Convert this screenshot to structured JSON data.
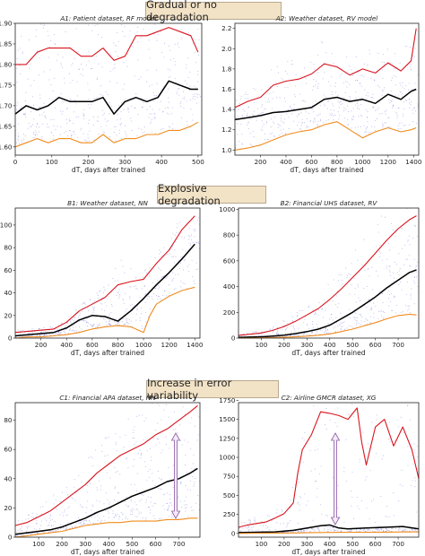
{
  "sections": [
    {
      "label": "Gradual or no degradation"
    },
    {
      "label": "Explosive degradation"
    },
    {
      "label": "Increase in error variability"
    }
  ],
  "colors": {
    "high": "#d9141e",
    "median": "#000000",
    "low": "#f08c1e",
    "scatter": "#4a4ad8"
  },
  "chart_data": [
    {
      "id": "A1",
      "type": "line",
      "title": "A1: Patient dataset, RF model",
      "xlabel": "dT, days after trained",
      "xlim": [
        0,
        510
      ],
      "ylim": [
        1.58,
        1.9
      ],
      "xticks": [
        0,
        100,
        200,
        300,
        400,
        500
      ],
      "yticks": [
        1.6,
        1.65,
        1.7,
        1.75,
        1.8,
        1.85,
        1.9
      ],
      "ytick_labels": [
        "1.60",
        "1.65",
        "1.70",
        "1.75",
        "1.80",
        "1.85",
        "1.90"
      ],
      "series": [
        {
          "x": [
            0,
            30,
            60,
            90,
            120,
            150,
            180,
            210,
            240,
            270,
            300,
            330,
            360,
            390,
            420,
            450,
            480,
            500
          ],
          "y": [
            1.8,
            1.8,
            1.83,
            1.84,
            1.84,
            1.84,
            1.82,
            1.82,
            1.84,
            1.81,
            1.82,
            1.87,
            1.87,
            1.88,
            1.89,
            1.88,
            1.87,
            1.83
          ]
        },
        {
          "x": [
            0,
            30,
            60,
            90,
            120,
            150,
            180,
            210,
            240,
            270,
            300,
            330,
            360,
            390,
            420,
            450,
            480,
            500
          ],
          "y": [
            1.68,
            1.7,
            1.69,
            1.7,
            1.72,
            1.71,
            1.71,
            1.71,
            1.72,
            1.68,
            1.71,
            1.72,
            1.71,
            1.72,
            1.76,
            1.75,
            1.74,
            1.74
          ]
        },
        {
          "x": [
            0,
            30,
            60,
            90,
            120,
            150,
            180,
            210,
            240,
            270,
            300,
            330,
            360,
            390,
            420,
            450,
            480,
            500
          ],
          "y": [
            1.6,
            1.61,
            1.62,
            1.61,
            1.62,
            1.62,
            1.61,
            1.61,
            1.63,
            1.61,
            1.62,
            1.62,
            1.63,
            1.63,
            1.64,
            1.64,
            1.65,
            1.66
          ]
        }
      ]
    },
    {
      "id": "A2",
      "type": "line",
      "title": "A2: Weather dataset, RV model",
      "xlabel": "dT, days after trained",
      "xlim": [
        0,
        1440
      ],
      "ylim": [
        0.95,
        2.25
      ],
      "xticks": [
        200,
        400,
        600,
        800,
        1000,
        1200,
        1400
      ],
      "yticks": [
        1.0,
        1.2,
        1.4,
        1.6,
        1.8,
        2.0,
        2.2
      ],
      "ytick_labels": [
        "1.0",
        "1.2",
        "1.4",
        "1.6",
        "1.8",
        "2.0",
        "2.2"
      ],
      "series": [
        {
          "x": [
            0,
            100,
            200,
            300,
            400,
            500,
            600,
            700,
            800,
            900,
            1000,
            1100,
            1200,
            1300,
            1380,
            1420
          ],
          "y": [
            1.42,
            1.48,
            1.52,
            1.64,
            1.68,
            1.7,
            1.75,
            1.85,
            1.82,
            1.74,
            1.8,
            1.76,
            1.86,
            1.78,
            1.88,
            2.2
          ]
        },
        {
          "x": [
            0,
            100,
            200,
            300,
            400,
            500,
            600,
            700,
            800,
            900,
            1000,
            1100,
            1200,
            1300,
            1380,
            1420
          ],
          "y": [
            1.3,
            1.32,
            1.34,
            1.37,
            1.38,
            1.4,
            1.42,
            1.5,
            1.52,
            1.48,
            1.5,
            1.46,
            1.55,
            1.5,
            1.58,
            1.6
          ]
        },
        {
          "x": [
            0,
            100,
            200,
            300,
            400,
            500,
            600,
            700,
            800,
            900,
            1000,
            1100,
            1200,
            1300,
            1380,
            1420
          ],
          "y": [
            1.0,
            1.02,
            1.05,
            1.1,
            1.15,
            1.18,
            1.2,
            1.25,
            1.28,
            1.2,
            1.12,
            1.18,
            1.22,
            1.18,
            1.2,
            1.22
          ]
        }
      ]
    },
    {
      "id": "B1",
      "type": "line",
      "title": "B1: Weather dataset, NN",
      "xlabel": "dT, days after trained",
      "xlim": [
        0,
        1440
      ],
      "ylim": [
        0,
        115
      ],
      "xticks": [
        200,
        400,
        600,
        800,
        1000,
        1200,
        1400
      ],
      "yticks": [
        0,
        20,
        40,
        60,
        80,
        100
      ],
      "ytick_labels": [
        "0",
        "20",
        "40",
        "60",
        "80",
        "100"
      ],
      "series": [
        {
          "x": [
            0,
            100,
            200,
            300,
            400,
            500,
            600,
            700,
            800,
            900,
            1000,
            1100,
            1200,
            1300,
            1400
          ],
          "y": [
            5,
            6,
            7,
            8,
            14,
            24,
            30,
            36,
            47,
            50,
            52,
            66,
            78,
            96,
            108
          ]
        },
        {
          "x": [
            0,
            100,
            200,
            300,
            400,
            500,
            600,
            700,
            800,
            900,
            1000,
            1100,
            1200,
            1300,
            1400
          ],
          "y": [
            2,
            3,
            4,
            5,
            9,
            16,
            20,
            19,
            15,
            24,
            35,
            47,
            58,
            70,
            83
          ]
        },
        {
          "x": [
            0,
            100,
            200,
            300,
            400,
            500,
            600,
            700,
            800,
            900,
            1000,
            1050,
            1100,
            1200,
            1300,
            1400
          ],
          "y": [
            0,
            1,
            1,
            2,
            3,
            5,
            8,
            10,
            11,
            10,
            5,
            20,
            30,
            37,
            42,
            45
          ]
        }
      ]
    },
    {
      "id": "B2",
      "type": "line",
      "title": "B2: Financial UHS dataset, RV",
      "xlabel": "dT, days after trained",
      "xlim": [
        0,
        790
      ],
      "ylim": [
        0,
        1010
      ],
      "xticks": [
        100,
        200,
        300,
        400,
        500,
        600,
        700
      ],
      "yticks": [
        0,
        200,
        400,
        600,
        800,
        1000
      ],
      "ytick_labels": [
        "0",
        "200",
        "400",
        "600",
        "800",
        "1000"
      ],
      "series": [
        {
          "x": [
            0,
            50,
            100,
            150,
            200,
            250,
            300,
            350,
            400,
            450,
            500,
            550,
            600,
            650,
            700,
            750,
            780
          ],
          "y": [
            20,
            30,
            40,
            60,
            90,
            130,
            180,
            230,
            300,
            380,
            470,
            560,
            660,
            760,
            850,
            920,
            950
          ]
        },
        {
          "x": [
            0,
            50,
            100,
            150,
            200,
            250,
            300,
            350,
            400,
            450,
            500,
            550,
            600,
            650,
            700,
            750,
            780
          ],
          "y": [
            5,
            8,
            10,
            15,
            22,
            35,
            50,
            70,
            100,
            150,
            200,
            260,
            320,
            390,
            450,
            510,
            530
          ]
        },
        {
          "x": [
            0,
            50,
            100,
            150,
            200,
            250,
            300,
            350,
            400,
            450,
            500,
            550,
            600,
            650,
            700,
            750,
            780
          ],
          "y": [
            0,
            1,
            2,
            4,
            6,
            10,
            15,
            22,
            32,
            50,
            70,
            95,
            120,
            150,
            175,
            185,
            180
          ]
        }
      ]
    },
    {
      "id": "C1",
      "type": "line",
      "title": "C1: Financial APA dataset, NN",
      "xlabel": "dT, days after trained",
      "xlim": [
        0,
        790
      ],
      "ylim": [
        0,
        92
      ],
      "xticks": [
        100,
        200,
        300,
        400,
        500,
        600,
        700
      ],
      "yticks": [
        0,
        20,
        40,
        60,
        80
      ],
      "ytick_labels": [
        "0",
        "20",
        "40",
        "60",
        "80"
      ],
      "series": [
        {
          "x": [
            0,
            50,
            100,
            150,
            200,
            250,
            300,
            350,
            400,
            450,
            500,
            550,
            600,
            650,
            700,
            750,
            780
          ],
          "y": [
            8,
            10,
            14,
            18,
            24,
            30,
            36,
            44,
            50,
            56,
            60,
            64,
            70,
            74,
            80,
            86,
            90
          ]
        },
        {
          "x": [
            0,
            50,
            100,
            150,
            200,
            250,
            300,
            350,
            400,
            450,
            500,
            550,
            600,
            650,
            700,
            750,
            780
          ],
          "y": [
            2,
            3,
            4,
            5,
            7,
            10,
            13,
            17,
            20,
            24,
            28,
            31,
            34,
            38,
            40,
            44,
            47
          ]
        },
        {
          "x": [
            0,
            50,
            100,
            150,
            200,
            250,
            300,
            350,
            400,
            450,
            500,
            550,
            600,
            650,
            700,
            750,
            780
          ],
          "y": [
            0,
            1,
            2,
            3,
            4,
            6,
            8,
            9,
            10,
            10,
            11,
            11,
            11,
            12,
            12,
            13,
            13
          ]
        }
      ]
    },
    {
      "id": "C2",
      "type": "line",
      "title": "C2: Airline GMCR dataset, XG",
      "xlabel": "dT, days after trained",
      "xlim": [
        0,
        790
      ],
      "ylim": [
        -50,
        1720
      ],
      "xticks": [
        100,
        200,
        300,
        400,
        500,
        600,
        700
      ],
      "yticks": [
        0,
        250,
        500,
        750,
        1000,
        1250,
        1500,
        1750
      ],
      "ytick_labels": [
        "0",
        "250",
        "500",
        "750",
        "1000",
        "1250",
        "1500",
        "1750"
      ],
      "series": [
        {
          "x": [
            0,
            40,
            80,
            120,
            160,
            200,
            240,
            260,
            280,
            320,
            360,
            400,
            440,
            480,
            520,
            540,
            560,
            600,
            640,
            680,
            720,
            760,
            790
          ],
          "y": [
            80,
            110,
            130,
            150,
            200,
            260,
            400,
            800,
            1100,
            1300,
            1600,
            1580,
            1550,
            1500,
            1650,
            1200,
            900,
            1400,
            1500,
            1150,
            1400,
            1100,
            720
          ]
        },
        {
          "x": [
            0,
            80,
            160,
            240,
            320,
            360,
            400,
            440,
            480,
            560,
            640,
            720,
            790
          ],
          "y": [
            10,
            15,
            20,
            40,
            80,
            100,
            110,
            70,
            60,
            70,
            80,
            90,
            60
          ]
        },
        {
          "x": [
            0,
            80,
            160,
            240,
            320,
            400,
            480,
            560,
            640,
            720,
            790
          ],
          "y": [
            0,
            2,
            4,
            6,
            10,
            12,
            15,
            14,
            16,
            18,
            20
          ]
        }
      ]
    }
  ]
}
